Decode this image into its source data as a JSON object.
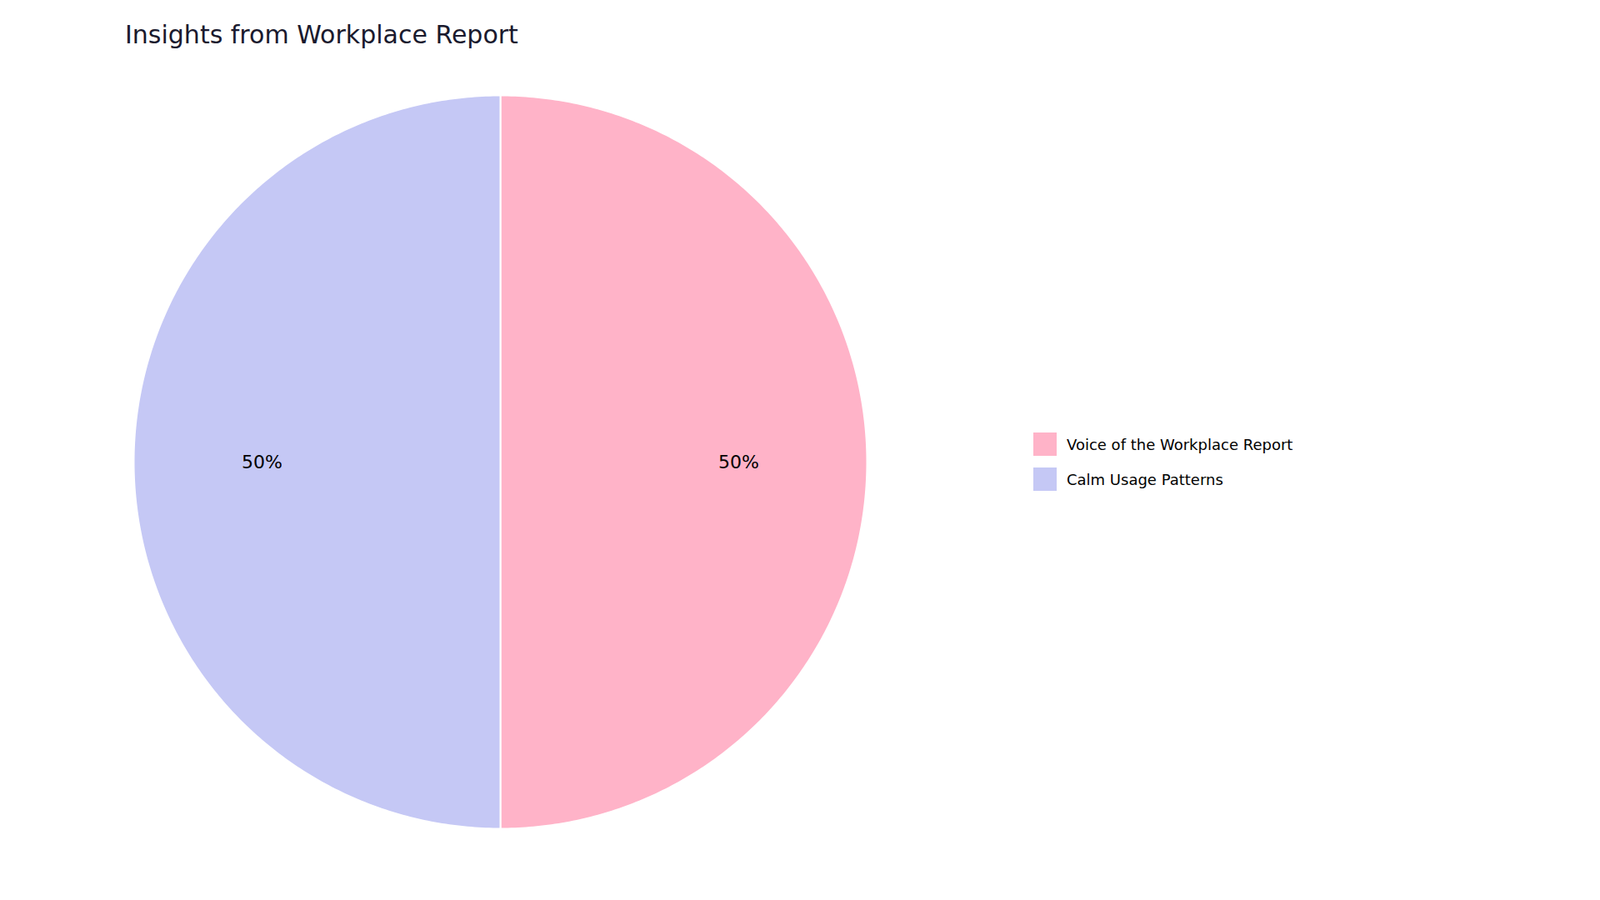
{
  "chart_data": {
    "type": "pie",
    "title": "Insights from Workplace Report",
    "categories": [
      "Voice of the Workplace Report",
      "Calm Usage Patterns"
    ],
    "values": [
      50,
      50
    ],
    "value_labels": [
      "50%",
      "50%"
    ],
    "colors": [
      "#FFB3C8",
      "#C5C8F5"
    ],
    "data_labels": true,
    "legend": "right"
  }
}
